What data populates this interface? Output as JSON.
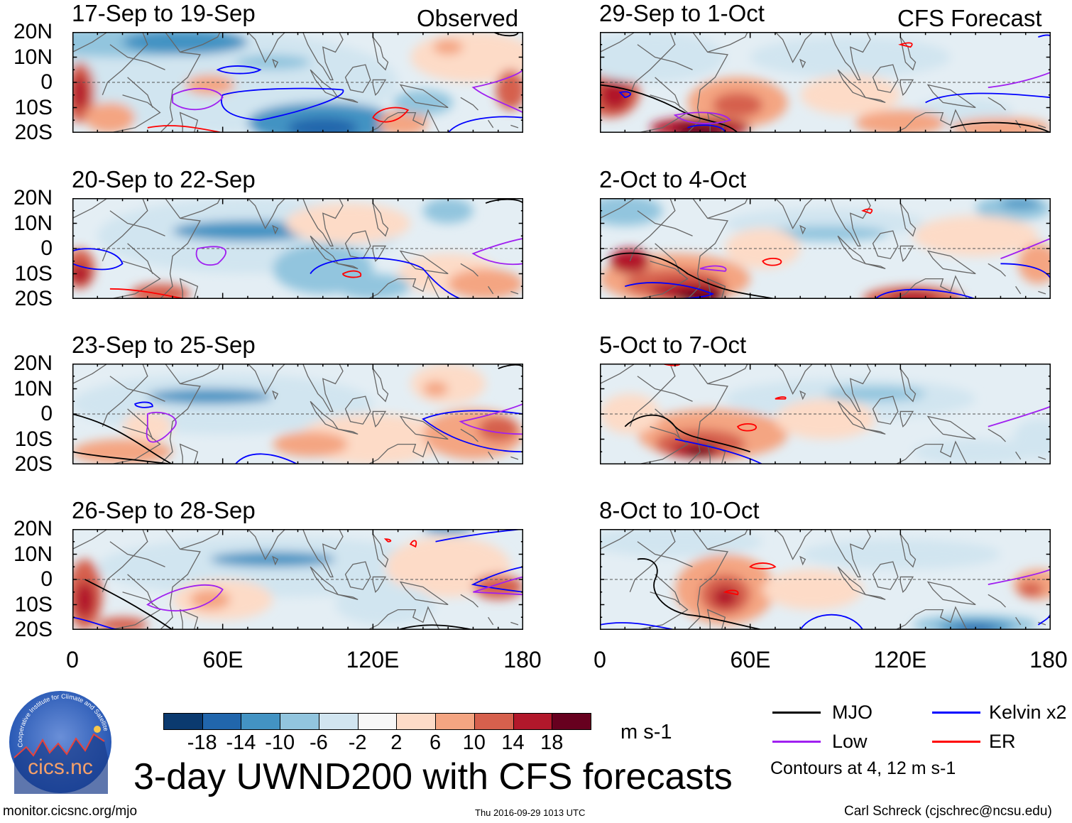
{
  "figure_title": "3-day UWND200 with CFS forecasts",
  "left_column_label": "Observed",
  "right_column_label": "CFS Forecast",
  "chart_data": {
    "type": "heatmap",
    "title": "3-day UWND200 with CFS forecasts",
    "variable": "200 hPa zonal wind",
    "units": "m s-1",
    "x_ticks": [
      "0",
      "60E",
      "120E",
      "180"
    ],
    "xlim": [
      0,
      180
    ],
    "y_ticks": [
      "20N",
      "10N",
      "0",
      "10S",
      "20S"
    ],
    "ylim": [
      -20,
      20
    ],
    "panels": [
      {
        "title": "17-Sep to 19-Sep",
        "source": "Observed"
      },
      {
        "title": "20-Sep to 22-Sep",
        "source": "Observed"
      },
      {
        "title": "23-Sep to 25-Sep",
        "source": "Observed"
      },
      {
        "title": "26-Sep to 28-Sep",
        "source": "Observed"
      },
      {
        "title": "29-Sep to 1-Oct",
        "source": "CFS Forecast"
      },
      {
        "title": "2-Oct to 4-Oct",
        "source": "CFS Forecast"
      },
      {
        "title": "5-Oct to 7-Oct",
        "source": "CFS Forecast"
      },
      {
        "title": "8-Oct to 10-Oct",
        "source": "CFS Forecast"
      }
    ],
    "colorbar": {
      "labels": [
        "-18",
        "-14",
        "-10",
        "-6",
        "-2",
        "2",
        "6",
        "10",
        "14",
        "18"
      ],
      "colors": [
        "#0b3a6f",
        "#2166ac",
        "#4393c3",
        "#92c5de",
        "#d1e5f0",
        "#f7f7f7",
        "#fddbc7",
        "#f4a582",
        "#d6604d",
        "#b2182b",
        "#67001f"
      ],
      "units": "m s-1"
    },
    "legend": [
      {
        "label": "MJO",
        "color": "#000000"
      },
      {
        "label": "Kelvin x2",
        "color": "#0000ff"
      },
      {
        "label": "Low",
        "color": "#a020f0"
      },
      {
        "label": "ER",
        "color": "#ff0000"
      }
    ],
    "contour_note": "Contours at 4, 12 m s-1"
  },
  "logo_text": "cics.nc",
  "logo_ring_text": "Cooperative Institute for Climate and Satellites",
  "footer": {
    "url": "monitor.cicsnc.org/mjo",
    "timestamp": "Thu 2016-09-29 1013 UTC",
    "author": "Carl Schreck (cjschrec@ncsu.edu)"
  }
}
